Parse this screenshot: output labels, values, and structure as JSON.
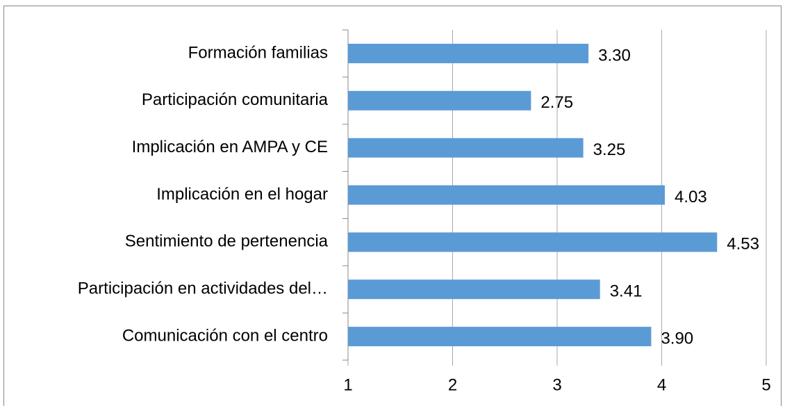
{
  "chart_data": {
    "type": "bar",
    "orientation": "horizontal",
    "categories": [
      "Formación familias",
      "Participación comunitaria",
      "Implicación en AMPA y CE",
      "Implicación en el hogar",
      "Sentimiento de pertenencia",
      "Participación en actividades del…",
      "Comunicación con el centro"
    ],
    "values": [
      3.3,
      2.75,
      3.25,
      4.03,
      4.53,
      3.41,
      3.9
    ],
    "value_labels": [
      "3.30",
      "2.75",
      "3.25",
      "4.03",
      "4.53",
      "3.41",
      "3.90"
    ],
    "color": "#5b9bd5",
    "xlim": [
      1,
      5
    ],
    "xticks": [
      1,
      2,
      3,
      4,
      5
    ],
    "grid": true
  }
}
